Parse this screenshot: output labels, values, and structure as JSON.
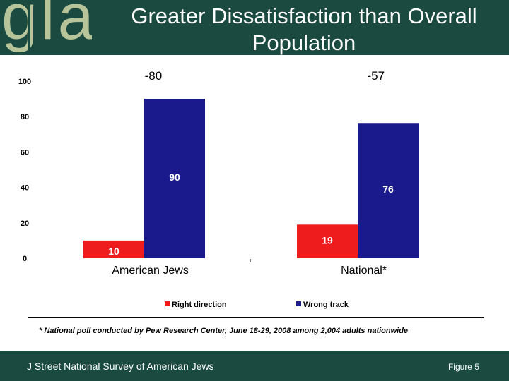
{
  "header": {
    "logo_text": "gla",
    "title_line1": "Greater Dissatisfaction than Overall",
    "title_line2": "Population"
  },
  "chart_data": {
    "type": "bar",
    "categories": [
      "American Jews",
      "National*"
    ],
    "series": [
      {
        "name": "Right direction",
        "values": [
          10,
          19
        ],
        "color": "#ee1c1c"
      },
      {
        "name": "Wrong track",
        "values": [
          90,
          76
        ],
        "color": "#1a1a8c"
      }
    ],
    "net_labels": [
      "-80",
      "-57"
    ],
    "ylim": [
      0,
      100
    ],
    "yticks": [
      0,
      20,
      40,
      60,
      80,
      100
    ],
    "title": "",
    "xlabel": "",
    "ylabel": "",
    "legend_position": "bottom"
  },
  "footnote": "* National poll conducted by Pew Research Center, June 18-29, 2008 among 2,004 adults nationwide",
  "footer": {
    "left": "J Street National Survey of American Jews",
    "right": "Figure 5"
  }
}
